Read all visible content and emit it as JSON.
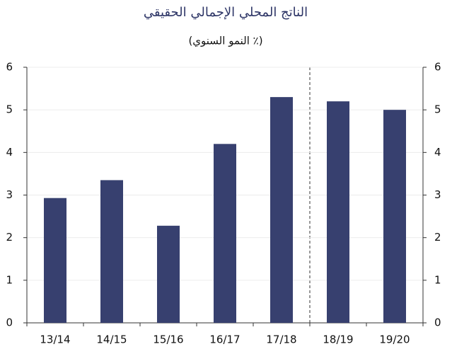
{
  "chart_data": {
    "type": "bar",
    "title": "الناتج المحلي الإجمالي الحقيقي",
    "subtitle": "(٪ النمو السنوي)",
    "categories": [
      "13/14",
      "14/15",
      "15/16",
      "16/17",
      "17/18",
      "18/19",
      "19/20"
    ],
    "values": [
      2.93,
      3.35,
      2.28,
      4.2,
      5.3,
      5.2,
      5.0
    ],
    "color": "#37406f",
    "ylim": [
      0,
      6
    ],
    "yticks": [
      0,
      1,
      2,
      3,
      4,
      5,
      6
    ],
    "y2lim": [
      0,
      6
    ],
    "y2ticks": [
      0,
      1,
      2,
      3,
      4,
      5,
      6
    ],
    "grid": true
  }
}
